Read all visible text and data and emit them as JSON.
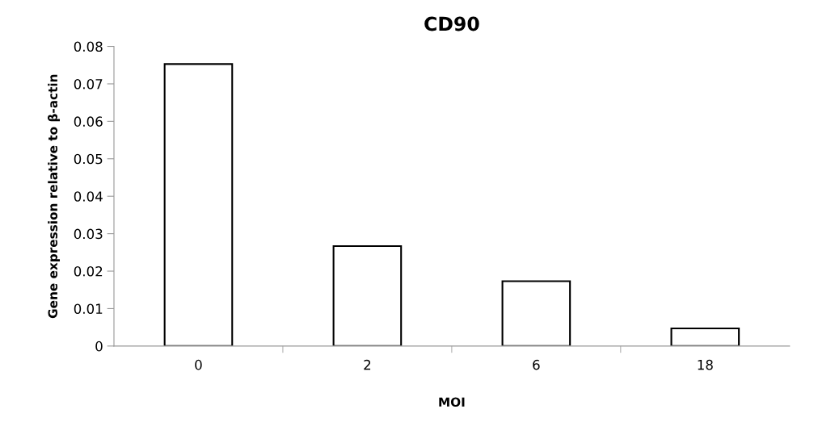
{
  "chart_data": {
    "type": "bar",
    "title": "CD90",
    "xlabel": "MOI",
    "ylabel": "Gene expression relative to β-actin",
    "categories": [
      "0",
      "2",
      "6",
      "18"
    ],
    "values": [
      0.0753,
      0.0267,
      0.0173,
      0.0047
    ],
    "colors": [
      "#ffffff",
      "#ffffff",
      "#ffffff",
      "#ffffff"
    ],
    "ylim": [
      0,
      0.08
    ],
    "yticks": [
      {
        "value": 0,
        "label": "0"
      },
      0.01,
      0.02,
      0.03,
      0.04,
      0.05,
      0.06,
      0.07,
      0.08
    ],
    "grid": false,
    "legend": false
  }
}
